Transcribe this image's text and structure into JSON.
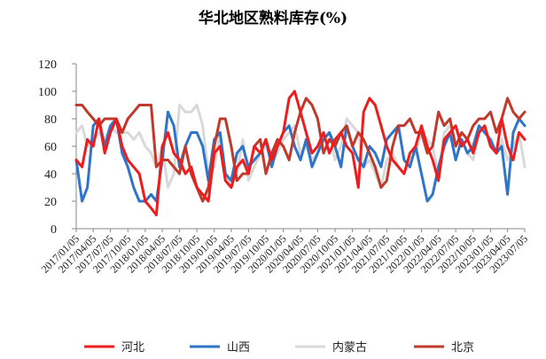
{
  "chart_data": {
    "type": "line",
    "title": "华北地区熟料库存(%)",
    "xlabel": "",
    "ylabel": "",
    "ylim": [
      0,
      120
    ],
    "yticks": [
      0,
      20,
      40,
      60,
      80,
      100,
      120
    ],
    "grid": false,
    "legend_position": "bottom",
    "x_start": "2017/01/05",
    "x_end": "2023/07/05",
    "x_tick_labels": [
      "2017/01/05",
      "2017/04/05",
      "2017/07/05",
      "2017/10/05",
      "2018/01/05",
      "2018/04/05",
      "2018/07/05",
      "2018/10/05",
      "2019/01/05",
      "2019/04/05",
      "2019/07/05",
      "2019/10/05",
      "2020/01/05",
      "2020/04/05",
      "2020/07/05",
      "2020/10/05",
      "2021/01/05",
      "2021/04/05",
      "2021/07/05",
      "2021/10/05",
      "2022/01/05",
      "2022/04/05",
      "2022/07/05",
      "2022/10/05",
      "2023/01/05",
      "2023/04/05",
      "2023/07/05"
    ],
    "series": [
      {
        "name": "河北",
        "color": "#ee1c1c",
        "x": [
          "2017/01/05",
          "2017/02/05",
          "2017/03/05",
          "2017/04/05",
          "2017/05/05",
          "2017/06/05",
          "2017/07/05",
          "2017/08/05",
          "2017/09/05",
          "2017/10/05",
          "2017/11/05",
          "2017/12/05",
          "2018/01/05",
          "2018/02/05",
          "2018/03/05",
          "2018/04/05",
          "2018/05/05",
          "2018/06/05",
          "2018/07/05",
          "2018/08/05",
          "2018/09/05",
          "2018/10/05",
          "2018/11/05",
          "2018/12/05",
          "2019/01/05",
          "2019/02/05",
          "2019/03/05",
          "2019/04/05",
          "2019/05/05",
          "2019/06/05",
          "2019/07/05",
          "2019/08/05",
          "2019/09/05",
          "2019/10/05",
          "2019/11/05",
          "2019/12/05",
          "2020/01/05",
          "2020/02/05",
          "2020/03/05",
          "2020/04/05",
          "2020/05/05",
          "2020/06/05",
          "2020/07/05",
          "2020/08/05",
          "2020/09/05",
          "2020/10/05",
          "2020/11/05",
          "2020/12/05",
          "2021/01/05",
          "2021/02/05",
          "2021/03/05",
          "2021/04/05",
          "2021/05/05",
          "2021/06/05",
          "2021/07/05",
          "2021/08/05",
          "2021/09/05",
          "2021/10/05",
          "2021/11/05",
          "2021/12/05",
          "2022/01/05",
          "2022/02/05",
          "2022/03/05",
          "2022/04/05",
          "2022/05/05",
          "2022/06/05",
          "2022/07/05",
          "2022/08/05",
          "2022/09/05",
          "2022/10/05",
          "2022/11/05",
          "2022/12/05",
          "2023/01/05",
          "2023/02/05",
          "2023/03/05",
          "2023/04/05",
          "2023/05/05",
          "2023/06/05",
          "2023/07/05"
        ],
        "values": [
          50,
          45,
          65,
          60,
          80,
          55,
          70,
          80,
          60,
          50,
          45,
          40,
          20,
          15,
          10,
          60,
          70,
          55,
          50,
          40,
          45,
          30,
          25,
          20,
          55,
          60,
          35,
          30,
          45,
          50,
          40,
          60,
          55,
          65,
          50,
          60,
          70,
          95,
          100,
          85,
          70,
          55,
          60,
          70,
          55,
          65,
          70,
          60,
          55,
          30,
          85,
          95,
          90,
          75,
          60,
          50,
          45,
          40,
          55,
          60,
          75,
          60,
          50,
          35,
          65,
          70,
          75,
          60,
          65,
          55,
          70,
          75,
          60,
          55,
          80,
          60,
          50,
          70,
          65
        ]
      },
      {
        "name": "山西",
        "color": "#2e75c9",
        "x": [
          "2017/01/05",
          "2017/02/05",
          "2017/03/05",
          "2017/04/05",
          "2017/05/05",
          "2017/06/05",
          "2017/07/05",
          "2017/08/05",
          "2017/09/05",
          "2017/10/05",
          "2017/11/05",
          "2017/12/05",
          "2018/01/05",
          "2018/02/05",
          "2018/03/05",
          "2018/04/05",
          "2018/05/05",
          "2018/06/05",
          "2018/07/05",
          "2018/08/05",
          "2018/09/05",
          "2018/10/05",
          "2018/11/05",
          "2018/12/05",
          "2019/01/05",
          "2019/02/05",
          "2019/03/05",
          "2019/04/05",
          "2019/05/05",
          "2019/06/05",
          "2019/07/05",
          "2019/08/05",
          "2019/09/05",
          "2019/10/05",
          "2019/11/05",
          "2019/12/05",
          "2020/01/05",
          "2020/02/05",
          "2020/03/05",
          "2020/04/05",
          "2020/05/05",
          "2020/06/05",
          "2020/07/05",
          "2020/08/05",
          "2020/09/05",
          "2020/10/05",
          "2020/11/05",
          "2020/12/05",
          "2021/01/05",
          "2021/02/05",
          "2021/03/05",
          "2021/04/05",
          "2021/05/05",
          "2021/06/05",
          "2021/07/05",
          "2021/08/05",
          "2021/09/05",
          "2021/10/05",
          "2021/11/05",
          "2021/12/05",
          "2022/01/05",
          "2022/02/05",
          "2022/03/05",
          "2022/04/05",
          "2022/05/05",
          "2022/06/05",
          "2022/07/05",
          "2022/08/05",
          "2022/09/05",
          "2022/10/05",
          "2022/11/05",
          "2022/12/05",
          "2023/01/05",
          "2023/02/05",
          "2023/03/05",
          "2023/04/05",
          "2023/05/05",
          "2023/06/05",
          "2023/07/05"
        ],
        "values": [
          50,
          20,
          30,
          75,
          80,
          60,
          75,
          80,
          55,
          45,
          30,
          20,
          20,
          25,
          20,
          50,
          85,
          75,
          45,
          60,
          70,
          70,
          60,
          35,
          65,
          70,
          40,
          35,
          55,
          60,
          45,
          50,
          55,
          65,
          45,
          60,
          70,
          75,
          60,
          50,
          65,
          45,
          55,
          65,
          70,
          60,
          45,
          75,
          60,
          50,
          45,
          60,
          55,
          45,
          65,
          70,
          75,
          50,
          45,
          60,
          40,
          20,
          25,
          45,
          60,
          70,
          50,
          65,
          55,
          60,
          75,
          70,
          65,
          55,
          60,
          25,
          70,
          80,
          75
        ]
      },
      {
        "name": "内蒙古",
        "color": "#d9d9d9",
        "x": [
          "2017/01/05",
          "2017/02/05",
          "2017/03/05",
          "2017/04/05",
          "2017/05/05",
          "2017/06/05",
          "2017/07/05",
          "2017/08/05",
          "2017/09/05",
          "2017/10/05",
          "2017/11/05",
          "2017/12/05",
          "2018/01/05",
          "2018/02/05",
          "2018/03/05",
          "2018/04/05",
          "2018/05/05",
          "2018/06/05",
          "2018/07/05",
          "2018/08/05",
          "2018/09/05",
          "2018/10/05",
          "2018/11/05",
          "2018/12/05",
          "2019/01/05",
          "2019/02/05",
          "2019/03/05",
          "2019/04/05",
          "2019/05/05",
          "2019/06/05",
          "2019/07/05",
          "2019/08/05",
          "2019/09/05",
          "2019/10/05",
          "2019/11/05",
          "2019/12/05",
          "2020/01/05",
          "2020/02/05",
          "2020/03/05",
          "2020/04/05",
          "2020/05/05",
          "2020/06/05",
          "2020/07/05",
          "2020/08/05",
          "2020/09/05",
          "2020/10/05",
          "2020/11/05",
          "2020/12/05",
          "2021/01/05",
          "2021/02/05",
          "2021/03/05",
          "2021/04/05",
          "2021/05/05",
          "2021/06/05",
          "2021/07/05",
          "2021/08/05",
          "2021/09/05",
          "2021/10/05",
          "2021/11/05",
          "2021/12/05",
          "2022/01/05",
          "2022/02/05",
          "2022/03/05",
          "2022/04/05",
          "2022/05/05",
          "2022/06/05",
          "2022/07/05",
          "2022/08/05",
          "2022/09/05",
          "2022/10/05",
          "2022/11/05",
          "2022/12/05",
          "2023/01/05",
          "2023/02/05",
          "2023/03/05",
          "2023/04/05",
          "2023/05/05",
          "2023/06/05",
          "2023/07/05"
        ],
        "values": [
          70,
          75,
          60,
          65,
          70,
          65,
          75,
          70,
          70,
          70,
          65,
          70,
          60,
          55,
          45,
          60,
          30,
          40,
          90,
          85,
          85,
          90,
          75,
          40,
          45,
          70,
          40,
          30,
          40,
          65,
          35,
          45,
          55,
          60,
          50,
          55,
          65,
          70,
          75,
          55,
          60,
          50,
          55,
          65,
          70,
          50,
          60,
          80,
          75,
          70,
          45,
          50,
          40,
          30,
          50,
          55,
          45,
          40,
          50,
          55,
          70,
          65,
          60,
          40,
          70,
          75,
          60,
          65,
          55,
          50,
          70,
          75,
          60,
          55,
          65,
          50,
          60,
          70,
          45
        ]
      },
      {
        "name": "北京",
        "color": "#c0392b",
        "x": [
          "2017/01/05",
          "2017/02/05",
          "2017/03/05",
          "2017/04/05",
          "2017/05/05",
          "2017/06/05",
          "2017/07/05",
          "2017/08/05",
          "2017/09/05",
          "2017/10/05",
          "2017/11/05",
          "2017/12/05",
          "2018/01/05",
          "2018/02/05",
          "2018/03/05",
          "2018/04/05",
          "2018/05/05",
          "2018/06/05",
          "2018/07/05",
          "2018/08/05",
          "2018/09/05",
          "2018/10/05",
          "2018/11/05",
          "2018/12/05",
          "2019/01/05",
          "2019/02/05",
          "2019/03/05",
          "2019/04/05",
          "2019/05/05",
          "2019/06/05",
          "2019/07/05",
          "2019/08/05",
          "2019/09/05",
          "2019/10/05",
          "2019/11/05",
          "2019/12/05",
          "2020/01/05",
          "2020/02/05",
          "2020/03/05",
          "2020/04/05",
          "2020/05/05",
          "2020/06/05",
          "2020/07/05",
          "2020/08/05",
          "2020/09/05",
          "2020/10/05",
          "2020/11/05",
          "2020/12/05",
          "2021/01/05",
          "2021/02/05",
          "2021/03/05",
          "2021/04/05",
          "2021/05/05",
          "2021/06/05",
          "2021/07/05",
          "2021/08/05",
          "2021/09/05",
          "2021/10/05",
          "2021/11/05",
          "2021/12/05",
          "2022/01/05",
          "2022/02/05",
          "2022/03/05",
          "2022/04/05",
          "2022/05/05",
          "2022/06/05",
          "2022/07/05",
          "2022/08/05",
          "2022/09/05",
          "2022/10/05",
          "2022/11/05",
          "2022/12/05",
          "2023/01/05",
          "2023/02/05",
          "2023/03/05",
          "2023/04/05",
          "2023/05/05",
          "2023/06/05",
          "2023/07/05"
        ],
        "values": [
          90,
          90,
          85,
          80,
          75,
          80,
          80,
          80,
          70,
          80,
          85,
          90,
          90,
          90,
          45,
          50,
          50,
          45,
          40,
          60,
          40,
          30,
          20,
          30,
          60,
          80,
          80,
          60,
          35,
          40,
          40,
          60,
          65,
          40,
          55,
          65,
          60,
          50,
          70,
          85,
          95,
          90,
          80,
          55,
          65,
          60,
          70,
          75,
          60,
          70,
          65,
          55,
          45,
          30,
          35,
          60,
          75,
          75,
          80,
          70,
          70,
          55,
          60,
          85,
          75,
          80,
          60,
          70,
          65,
          75,
          80,
          80,
          85,
          70,
          80,
          95,
          85,
          80,
          85
        ]
      }
    ]
  }
}
